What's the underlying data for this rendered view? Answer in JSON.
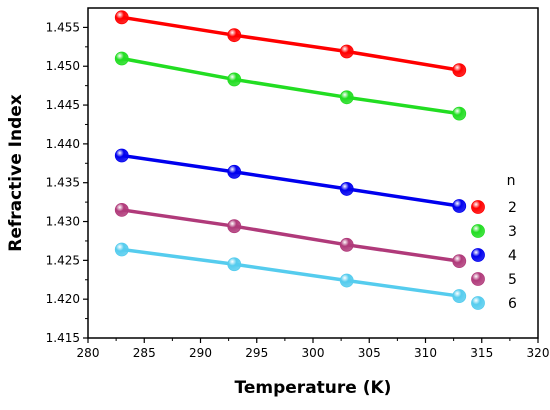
{
  "chart_data": {
    "type": "line",
    "title": "",
    "xlabel": "Temperature (K)",
    "ylabel": "Refractive Index",
    "xlim": [
      280,
      320
    ],
    "ylim": [
      1.415,
      1.4575
    ],
    "xticks": [
      280,
      285,
      290,
      295,
      300,
      305,
      310,
      315,
      320
    ],
    "yticks": [
      1.415,
      1.42,
      1.425,
      1.43,
      1.435,
      1.44,
      1.445,
      1.45,
      1.455
    ],
    "grid": false,
    "legend": {
      "title": "n",
      "placement": "right"
    },
    "series": [
      {
        "name": "2",
        "color": "#ff0000",
        "x": [
          283,
          293,
          303,
          313
        ],
        "y": [
          1.4563,
          1.454,
          1.4519,
          1.4495
        ]
      },
      {
        "name": "3",
        "color": "#22dd22",
        "x": [
          283,
          293,
          303,
          313
        ],
        "y": [
          1.451,
          1.4483,
          1.446,
          1.4439
        ]
      },
      {
        "name": "4",
        "color": "#0000ee",
        "x": [
          283,
          293,
          303,
          313
        ],
        "y": [
          1.4385,
          1.4364,
          1.4342,
          1.432
        ]
      },
      {
        "name": "5",
        "color": "#b03a7a",
        "x": [
          283,
          293,
          303,
          313
        ],
        "y": [
          1.4315,
          1.4294,
          1.427,
          1.4249
        ]
      },
      {
        "name": "6",
        "color": "#55ccee",
        "x": [
          283,
          293,
          303,
          313
        ],
        "y": [
          1.4264,
          1.4245,
          1.4224,
          1.4204
        ]
      }
    ]
  }
}
